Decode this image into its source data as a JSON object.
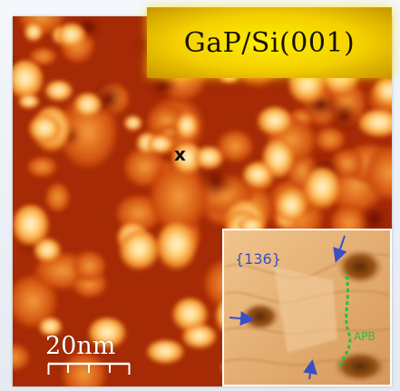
{
  "title": "GaP/Si(001)",
  "marker": "x",
  "scale_bar": {
    "label": "20nm"
  },
  "inset": {
    "facet_label": "{136}",
    "boundary_label": "APB"
  },
  "colors": {
    "banner": "#f3cf00",
    "stm_dark": "#8e1d03",
    "stm_mid": "#d95a12",
    "stm_bright": "#fff2c8",
    "inset_surface": "#e3ae72",
    "arrow": "#3a4fc4",
    "apb_line": "#23c23a"
  }
}
